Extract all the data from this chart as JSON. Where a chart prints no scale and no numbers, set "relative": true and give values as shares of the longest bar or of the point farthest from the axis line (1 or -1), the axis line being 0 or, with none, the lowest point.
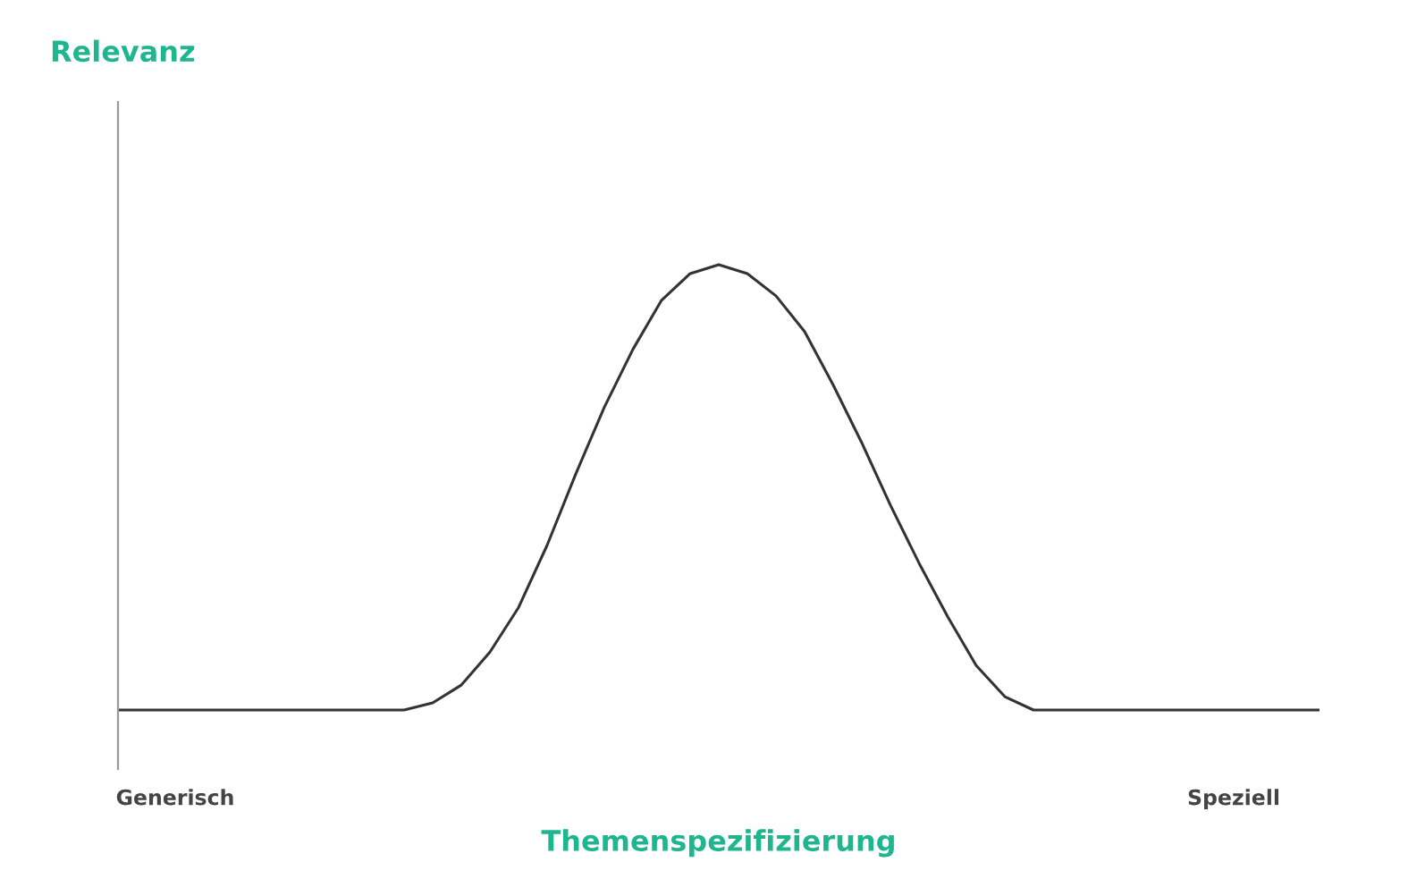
{
  "chart_data": {
    "type": "line",
    "relative": true,
    "annotations": [
      "Relevanz"
    ],
    "xlabel": "Themenspezifizierung",
    "categories": [
      null,
      null,
      "Generisch",
      null,
      null,
      null,
      null,
      null,
      null,
      null,
      null,
      null,
      null,
      null,
      null,
      null,
      null,
      null,
      null,
      null,
      null,
      null,
      null,
      null,
      null,
      null,
      null,
      null,
      null,
      null,
      null,
      null,
      null,
      null,
      null,
      null,
      null,
      null,
      null,
      "Speziell",
      null,
      null,
      null
    ],
    "series": [
      {
        "color": "#333333",
        "values": [
          0,
          0,
          0,
          0,
          0,
          0,
          0,
          0,
          0,
          0,
          0,
          0.016,
          0.056,
          0.13,
          0.23,
          0.37,
          0.53,
          0.68,
          0.81,
          0.92,
          0.98,
          1,
          0.98,
          0.93,
          0.85,
          0.73,
          0.6,
          0.46,
          0.33,
          0.21,
          0.1,
          0.03,
          0,
          0,
          0,
          0,
          0,
          0,
          0,
          0,
          0,
          0,
          0
        ]
      }
    ]
  }
}
